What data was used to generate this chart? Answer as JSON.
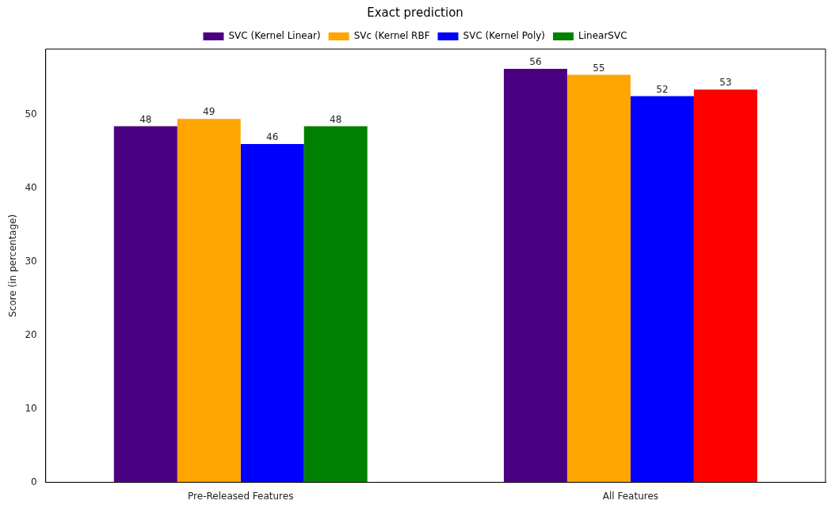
{
  "chart_data": {
    "type": "bar",
    "title": "Exact prediction",
    "ylabel": "Score (in percentage)",
    "categories": [
      "Pre-Released Features",
      "All Features"
    ],
    "series": [
      {
        "name": "SVC (Kernel Linear)",
        "color": "#4b0082",
        "values": [
          48.4,
          56.2
        ],
        "value_labels": [
          "48",
          "56"
        ]
      },
      {
        "name": "SVc (Kernel RBF",
        "color": "#ffa500",
        "values": [
          49.4,
          55.4
        ],
        "value_labels": [
          "49",
          "55"
        ]
      },
      {
        "name": "SVC (Kernel Poly)",
        "color": "#0000ff",
        "values": [
          46.0,
          52.5
        ],
        "value_labels": [
          "46",
          "52"
        ]
      },
      {
        "name": "LinearSVC",
        "color": "#008000",
        "colors": [
          "#008000",
          "#ff0000"
        ],
        "values": [
          48.4,
          53.4
        ],
        "value_labels": [
          "48",
          "53"
        ]
      }
    ],
    "ylim": [
      0,
      58.9
    ],
    "yticks": [
      0,
      10,
      20,
      30,
      40,
      50
    ],
    "grid": false,
    "legend": "top"
  }
}
